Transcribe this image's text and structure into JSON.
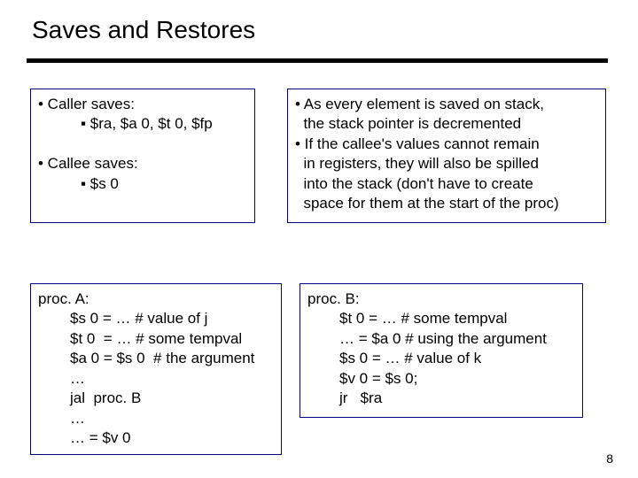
{
  "title": "Saves and Restores",
  "page_number": "8",
  "colors": {
    "rule": "#000000",
    "box_border": "#000080",
    "text": "#000000",
    "background": "#ffffff"
  },
  "left_top": {
    "l1": "• Caller saves:",
    "l2": "▪ $ra, $a 0, $t 0, $fp",
    "blank": " ",
    "l3": "• Callee saves:",
    "l4": "▪ $s 0"
  },
  "right_top": {
    "l1": "• As every element is saved on stack,",
    "l2": "  the stack pointer is decremented",
    "l3": "• If the callee's values cannot remain",
    "l4": "  in registers, they will also be spilled",
    "l5": "  into the stack (don't have to create",
    "l6": "  space for them at the start of the proc)"
  },
  "left_bot": {
    "l1": "proc. A:",
    "l2": "$s 0 = … # value of j",
    "l3": "$t 0  = … # some tempval",
    "l4": "$a 0 = $s 0  # the argument",
    "l5": "…",
    "l6": "jal  proc. B",
    "l7": "…",
    "l8": "… = $v 0"
  },
  "right_bot": {
    "l1": "proc. B:",
    "l2": "$t 0 = … # some tempval",
    "l3": "… = $a 0 # using the argument",
    "l4": "$s 0 = … # value of k",
    "l5": "$v 0 = $s 0;",
    "l6": "jr   $ra"
  }
}
